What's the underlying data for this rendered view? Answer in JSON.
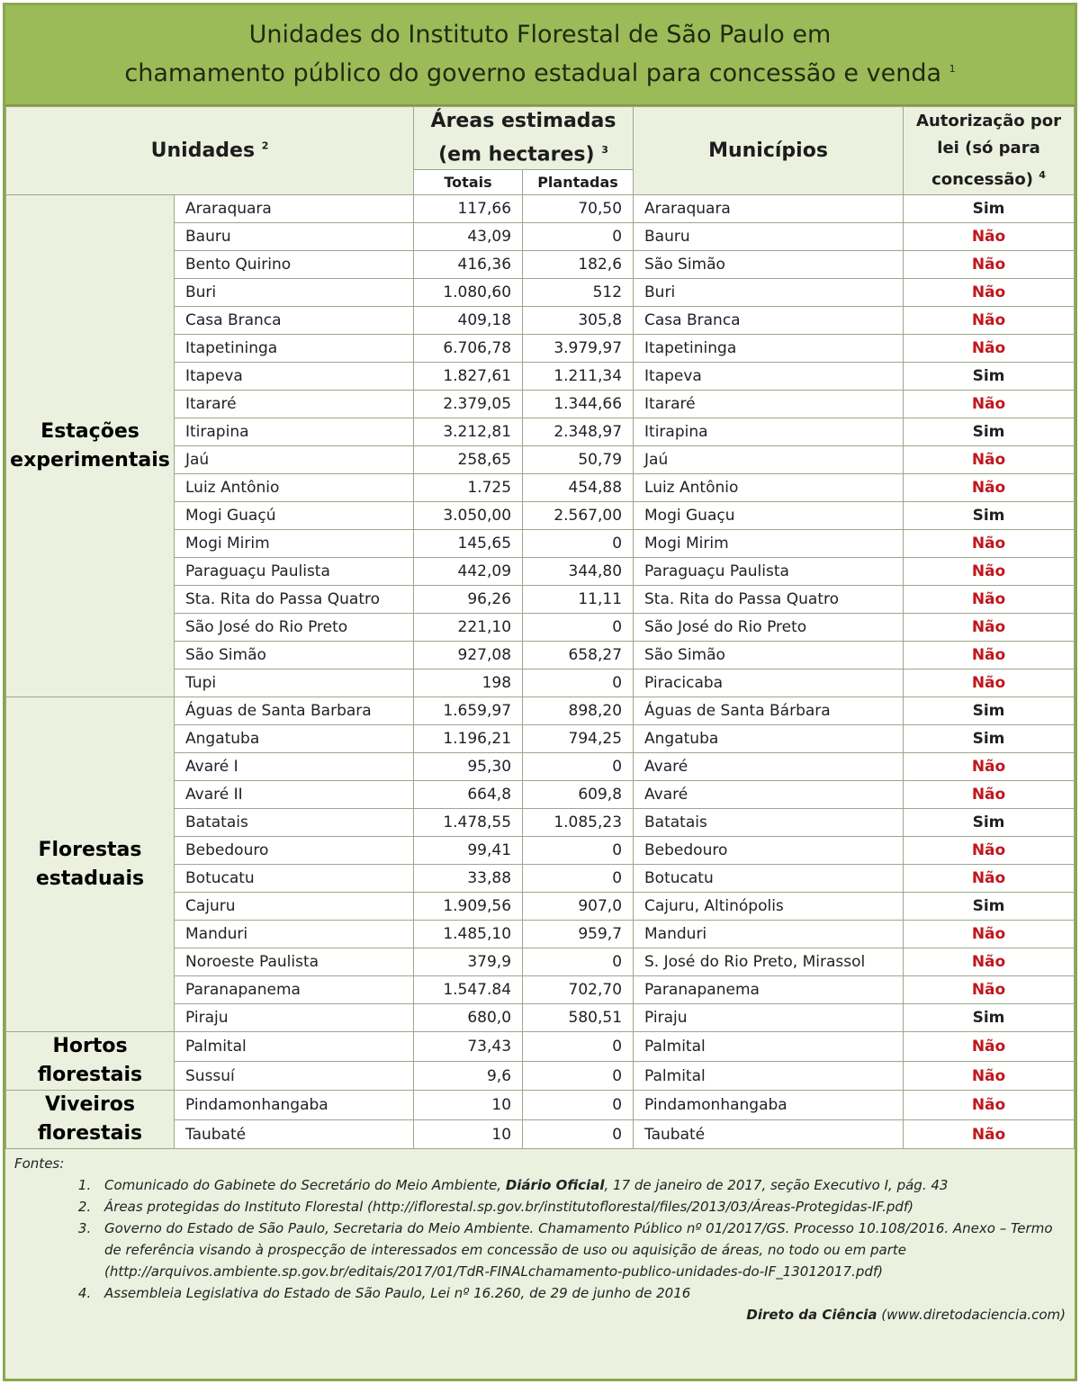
{
  "title": {
    "line1": "Unidades do Instituto Florestal de São Paulo em",
    "line2": "chamamento público do governo estadual para concessão e venda",
    "sup": "1"
  },
  "header": {
    "unidades": "Unidades",
    "unidades_sup": "2",
    "areas": "Áreas estimadas",
    "areas2": "(em hectares)",
    "areas_sup": "3",
    "totais": "Totais",
    "plantadas": "Plantadas",
    "municipios": "Municípios",
    "autorizacao": "Autorização por lei (só para concessão)",
    "autorizacao_sup": "4"
  },
  "status_colors": {
    "Sim": "#222222",
    "Não": "#c0171c"
  },
  "groups": [
    {
      "name": "Estações experimentais",
      "rows": [
        [
          "Araraquara",
          "117,66",
          "70,50",
          "Araraquara",
          "Sim"
        ],
        [
          "Bauru",
          "43,09",
          "0",
          "Bauru",
          "Não"
        ],
        [
          "Bento Quirino",
          "416,36",
          "182,6",
          "São Simão",
          "Não"
        ],
        [
          "Buri",
          "1.080,60",
          "512",
          "Buri",
          "Não"
        ],
        [
          "Casa Branca",
          "409,18",
          "305,8",
          "Casa Branca",
          "Não"
        ],
        [
          "Itapetininga",
          "6.706,78",
          "3.979,97",
          "Itapetininga",
          "Não"
        ],
        [
          "Itapeva",
          "1.827,61",
          "1.211,34",
          "Itapeva",
          "Sim"
        ],
        [
          "Itararé",
          "2.379,05",
          "1.344,66",
          "Itararé",
          "Não"
        ],
        [
          "Itirapina",
          "3.212,81",
          "2.348,97",
          "Itirapina",
          "Sim"
        ],
        [
          "Jaú",
          "258,65",
          "50,79",
          "Jaú",
          "Não"
        ],
        [
          "Luiz Antônio",
          "1.725",
          "454,88",
          "Luiz Antônio",
          "Não"
        ],
        [
          "Mogi Guaçú",
          "3.050,00",
          "2.567,00",
          "Mogi Guaçu",
          "Sim"
        ],
        [
          "Mogi Mirim",
          "145,65",
          "0",
          "Mogi Mirim",
          "Não"
        ],
        [
          "Paraguaçu Paulista",
          "442,09",
          "344,80",
          "Paraguaçu Paulista",
          "Não"
        ],
        [
          "Sta. Rita do Passa Quatro",
          "96,26",
          "11,11",
          "Sta. Rita do Passa Quatro",
          "Não"
        ],
        [
          "São José do Rio Preto",
          "221,10",
          "0",
          "São José do Rio Preto",
          "Não"
        ],
        [
          "São Simão",
          "927,08",
          "658,27",
          "São Simão",
          "Não"
        ],
        [
          "Tupi",
          "198",
          "0",
          "Piracicaba",
          "Não"
        ]
      ]
    },
    {
      "name": "Florestas estaduais",
      "rows": [
        [
          "Águas de Santa Barbara",
          "1.659,97",
          "898,20",
          "Águas de Santa Bárbara",
          "Sim"
        ],
        [
          "Angatuba",
          "1.196,21",
          "794,25",
          "Angatuba",
          "Sim"
        ],
        [
          "Avaré I",
          "95,30",
          "0",
          "Avaré",
          "Não"
        ],
        [
          "Avaré II",
          "664,8",
          "609,8",
          "Avaré",
          "Não"
        ],
        [
          "Batatais",
          "1.478,55",
          "1.085,23",
          "Batatais",
          "Sim"
        ],
        [
          "Bebedouro",
          "99,41",
          "0",
          "Bebedouro",
          "Não"
        ],
        [
          "Botucatu",
          "33,88",
          "0",
          "Botucatu",
          "Não"
        ],
        [
          "Cajuru",
          "1.909,56",
          "907,0",
          "Cajuru, Altinópolis",
          "Sim"
        ],
        [
          "Manduri",
          "1.485,10",
          "959,7",
          "Manduri",
          "Não"
        ],
        [
          "Noroeste Paulista",
          "379,9",
          "0",
          "S. José do Rio Preto, Mirassol",
          "Não"
        ],
        [
          "Paranapanema",
          "1.547.84",
          "702,70",
          "Paranapanema",
          "Não"
        ],
        [
          "Piraju",
          "680,0",
          "580,51",
          "Piraju",
          "Sim"
        ]
      ]
    },
    {
      "name": "Hortos florestais",
      "rows": [
        [
          "Palmital",
          "73,43",
          "0",
          "Palmital",
          "Não"
        ],
        [
          "Sussuí",
          "9,6",
          "0",
          "Palmital",
          "Não"
        ]
      ]
    },
    {
      "name": "Viveiros florestais",
      "rows": [
        [
          "Pindamonhangaba",
          "10",
          "0",
          "Pindamonhangaba",
          "Não"
        ],
        [
          "Taubaté",
          "10",
          "0",
          "Taubaté",
          "Não"
        ]
      ]
    }
  ],
  "footer": {
    "label": "Fontes:",
    "sources": [
      {
        "pre": "Comunicado do Gabinete do Secretário do Meio Ambiente, ",
        "bold": "Diário Oficial",
        "post": ", 17 de janeiro de 2017, seção Executivo I, pág. 43"
      },
      {
        "pre": "Áreas protegidas do Instituto Florestal (http://iflorestal.sp.gov.br/institutoflorestal/files/2013/03/Áreas-Protegidas-IF.pdf)",
        "bold": "",
        "post": ""
      },
      {
        "pre": "Governo do Estado de São Paulo, Secretaria do Meio Ambiente. Chamamento Público nº 01/2017/GS. Processo 10.108/2016. Anexo – Termo de referência visando à prospecção de interessados em concessão de uso ou aquisição de áreas, no todo ou em parte (http://arquivos.ambiente.sp.gov.br/editais/2017/01/TdR-FINALchamamento-publico-unidades-do-IF_13012017.pdf)",
        "bold": "",
        "post": ""
      },
      {
        "pre": "Assembleia Legislativa do Estado de São Paulo, Lei nº 16.260, de 29 de junho de 2016",
        "bold": "",
        "post": ""
      }
    ],
    "credit_bold": "Direto da Ciência",
    "credit_rest": " (www.diretodaciencia.com)"
  }
}
